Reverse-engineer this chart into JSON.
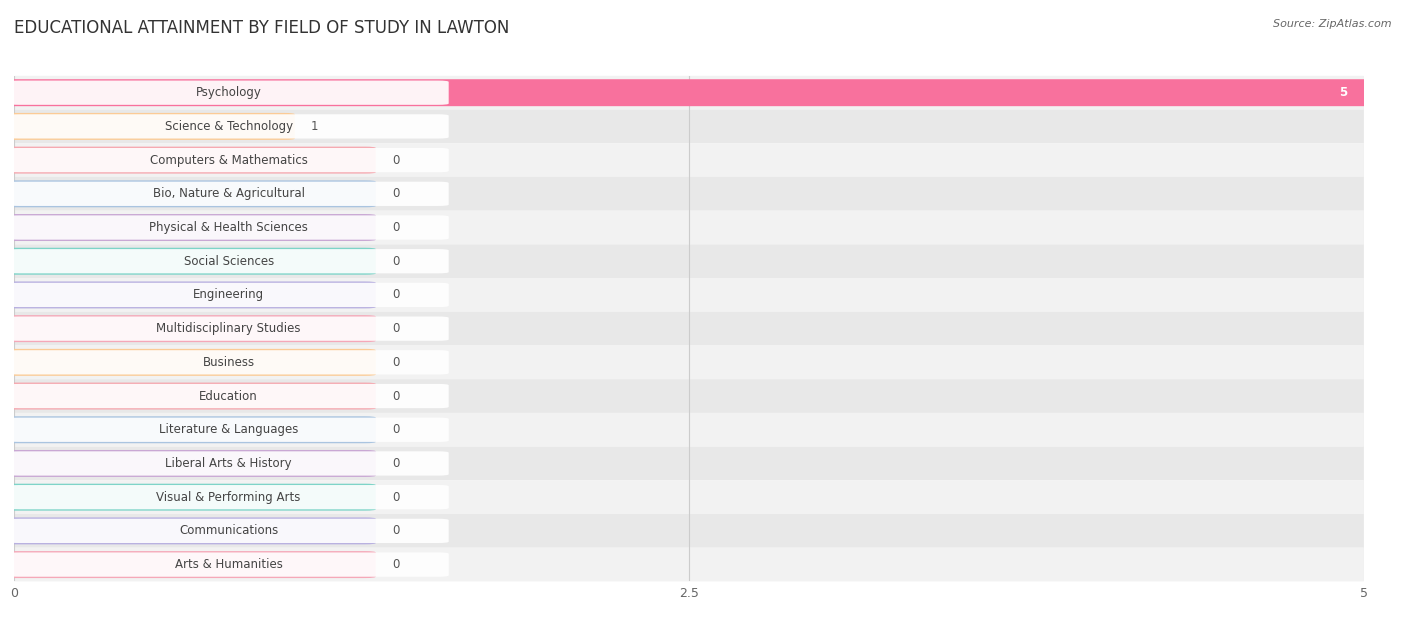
{
  "title": "EDUCATIONAL ATTAINMENT BY FIELD OF STUDY IN LAWTON",
  "source": "Source: ZipAtlas.com",
  "categories": [
    "Psychology",
    "Science & Technology",
    "Computers & Mathematics",
    "Bio, Nature & Agricultural",
    "Physical & Health Sciences",
    "Social Sciences",
    "Engineering",
    "Multidisciplinary Studies",
    "Business",
    "Education",
    "Literature & Languages",
    "Liberal Arts & History",
    "Visual & Performing Arts",
    "Communications",
    "Arts & Humanities"
  ],
  "values": [
    5,
    1,
    0,
    0,
    0,
    0,
    0,
    0,
    0,
    0,
    0,
    0,
    0,
    0,
    0
  ],
  "bar_colors": [
    "#F8719D",
    "#FBCB96",
    "#F5A8B0",
    "#AAC4E0",
    "#C9A8D4",
    "#7ED4C8",
    "#B8B0E0",
    "#F5A8B8",
    "#FBCB96",
    "#F5A8B0",
    "#AAC4E0",
    "#C9A8D4",
    "#7ED4C8",
    "#B8B0E0",
    "#F5A8B8"
  ],
  "xlim": [
    0,
    5
  ],
  "xticks": [
    0,
    2.5,
    5
  ],
  "title_fontsize": 12,
  "label_fontsize": 8.5,
  "value_fontsize": 8.5,
  "row_colors": [
    "#f2f2f2",
    "#e8e8e8"
  ]
}
